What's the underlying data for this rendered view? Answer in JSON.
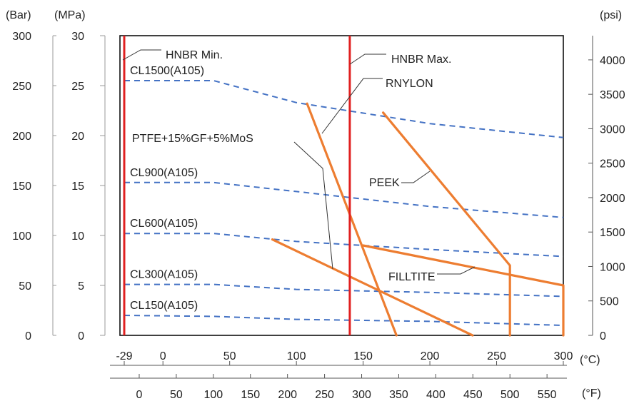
{
  "chart_data": {
    "type": "line",
    "title": "",
    "units": {
      "bar": "(Bar)",
      "mpa": "(MPa)",
      "psi": "(psi)",
      "celsius": "(°C)",
      "fahrenheit": "(°F)"
    },
    "axes": {
      "x_celsius": {
        "range": [
          -29,
          300
        ],
        "ticks": [
          -29,
          0,
          50,
          100,
          150,
          200,
          250,
          300
        ]
      },
      "x_fahrenheit": {
        "ticks": [
          0,
          50,
          100,
          150,
          200,
          250,
          300,
          350,
          400,
          450,
          500,
          550
        ]
      },
      "y_mpa": {
        "range": [
          0,
          30
        ],
        "ticks": [
          0,
          5,
          10,
          15,
          20,
          25,
          30
        ]
      },
      "y_bar": {
        "ticks": [
          0,
          50,
          100,
          150,
          200,
          250,
          300
        ]
      },
      "y_psi": {
        "ticks": [
          0,
          500,
          1000,
          1500,
          2000,
          2500,
          3000,
          3500,
          4000
        ]
      }
    },
    "vertical_lines": [
      {
        "name": "HNBR Min.",
        "x": -29,
        "color": "#e02020"
      },
      {
        "name": "HNBR Max.",
        "x": 140,
        "color": "#e02020"
      }
    ],
    "series": [
      {
        "name": "CL1500(A105)",
        "style": "dashed",
        "color": "#4472c4",
        "points": [
          [
            -29,
            25.5
          ],
          [
            38,
            25.5
          ],
          [
            100,
            23.3
          ],
          [
            200,
            21.2
          ],
          [
            300,
            19.8
          ]
        ]
      },
      {
        "name": "CL900(A105)",
        "style": "dashed",
        "color": "#4472c4",
        "points": [
          [
            -29,
            15.3
          ],
          [
            38,
            15.3
          ],
          [
            100,
            14.4
          ],
          [
            200,
            12.9
          ],
          [
            300,
            11.8
          ]
        ]
      },
      {
        "name": "CL600(A105)",
        "style": "dashed",
        "color": "#4472c4",
        "points": [
          [
            -29,
            10.2
          ],
          [
            38,
            10.2
          ],
          [
            100,
            9.4
          ],
          [
            200,
            8.6
          ],
          [
            300,
            7.9
          ]
        ]
      },
      {
        "name": "CL300(A105)",
        "style": "dashed",
        "color": "#4472c4",
        "points": [
          [
            -29,
            5.1
          ],
          [
            38,
            5.1
          ],
          [
            100,
            4.6
          ],
          [
            200,
            4.3
          ],
          [
            300,
            3.9
          ]
        ]
      },
      {
        "name": "CL150(A105)",
        "style": "dashed",
        "color": "#4472c4",
        "points": [
          [
            -29,
            2.0
          ],
          [
            38,
            1.9
          ],
          [
            100,
            1.6
          ],
          [
            200,
            1.4
          ],
          [
            300,
            1.0
          ]
        ]
      },
      {
        "name": "RNYLON",
        "style": "solid",
        "color": "#ed7d31",
        "points": [
          [
            108,
            23.2
          ],
          [
            175,
            0
          ]
        ]
      },
      {
        "name": "PTFE+15%GF+5%MoS",
        "style": "solid",
        "color": "#ed7d31",
        "points": [
          [
            82,
            9.6
          ],
          [
            232,
            0
          ]
        ]
      },
      {
        "name": "PEEK",
        "style": "solid",
        "color": "#ed7d31",
        "points": [
          [
            165,
            22.3
          ],
          [
            260,
            7.0
          ],
          [
            260,
            0
          ]
        ]
      },
      {
        "name": "FILLTITE",
        "style": "solid",
        "color": "#ed7d31",
        "points": [
          [
            150,
            9.0
          ],
          [
            300,
            5.0
          ],
          [
            300,
            0
          ]
        ]
      }
    ],
    "annotations": [
      {
        "text": "HNBR Min."
      },
      {
        "text": "HNBR Max."
      },
      {
        "text": "RNYLON"
      },
      {
        "text": "PTFE+15%GF+5%MoS"
      },
      {
        "text": "PEEK"
      },
      {
        "text": "FILLTITE"
      }
    ]
  }
}
